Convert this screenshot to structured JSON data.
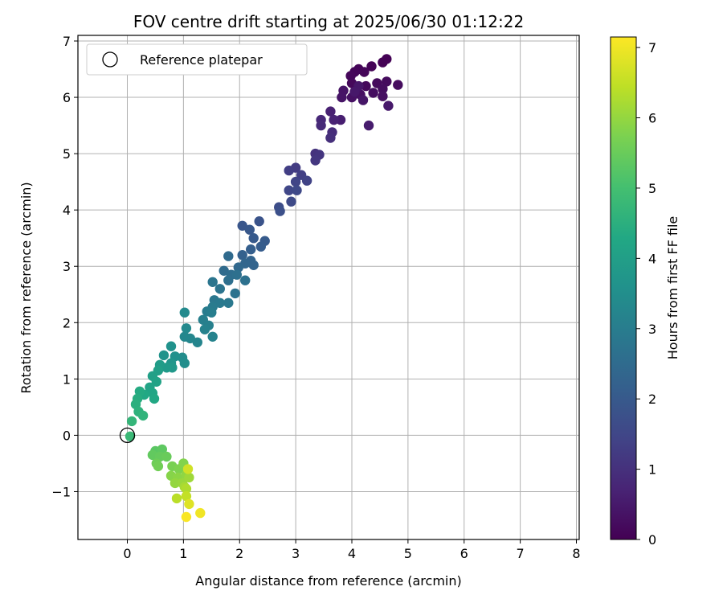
{
  "chart_data": {
    "type": "scatter",
    "title": "FOV centre drift starting at 2025/06/30 01:12:22",
    "xlabel": "Angular distance from reference (arcmin)",
    "ylabel": "Rotation from reference (arcmin)",
    "xlim": [
      -0.88,
      8.05
    ],
    "ylim": [
      -1.85,
      7.1
    ],
    "xticks": [
      0,
      1,
      2,
      3,
      4,
      5,
      6,
      7,
      8
    ],
    "yticks": [
      -1,
      0,
      1,
      2,
      3,
      4,
      5,
      6,
      7
    ],
    "grid": true,
    "legend": {
      "placement": "top-left",
      "label": "Reference platepar"
    },
    "colorbar": {
      "label": "Hours from first FF file",
      "colormap": "viridis",
      "range": [
        0,
        7.15
      ],
      "ticks": [
        0,
        1,
        2,
        3,
        4,
        5,
        6,
        7
      ]
    },
    "reference_point": {
      "x": 0,
      "y": 0
    },
    "points": [
      [
        4.62,
        6.68,
        0.02
      ],
      [
        4.55,
        6.62,
        0.03
      ],
      [
        4.35,
        6.55,
        0.05
      ],
      [
        4.12,
        6.5,
        0.06
      ],
      [
        4.05,
        6.45,
        0.08
      ],
      [
        4.22,
        6.45,
        0.1
      ],
      [
        3.98,
        6.38,
        0.12
      ],
      [
        4.0,
        6.25,
        0.14
      ],
      [
        4.25,
        6.2,
        0.16
      ],
      [
        4.45,
        6.25,
        0.18
      ],
      [
        4.62,
        6.28,
        0.2
      ],
      [
        4.82,
        6.22,
        0.22
      ],
      [
        4.55,
        6.15,
        0.24
      ],
      [
        4.38,
        6.08,
        0.26
      ],
      [
        4.55,
        6.02,
        0.28
      ],
      [
        4.15,
        6.05,
        0.3
      ],
      [
        4.0,
        6.0,
        0.33
      ],
      [
        3.85,
        6.12,
        0.36
      ],
      [
        3.82,
        6.0,
        0.39
      ],
      [
        4.2,
        5.95,
        0.42
      ],
      [
        4.12,
        6.2,
        0.45
      ],
      [
        4.05,
        6.1,
        0.48
      ],
      [
        4.65,
        5.85,
        0.5
      ],
      [
        4.3,
        5.5,
        0.55
      ],
      [
        3.8,
        5.6,
        0.6
      ],
      [
        3.62,
        5.75,
        0.65
      ],
      [
        3.68,
        5.6,
        0.7
      ],
      [
        3.45,
        5.6,
        0.78
      ],
      [
        3.45,
        5.5,
        0.84
      ],
      [
        3.65,
        5.38,
        0.9
      ],
      [
        3.62,
        5.28,
        0.96
      ],
      [
        3.35,
        5.0,
        1.05
      ],
      [
        3.42,
        4.98,
        1.1
      ],
      [
        3.35,
        4.88,
        1.15
      ],
      [
        3.0,
        4.75,
        1.25
      ],
      [
        2.88,
        4.7,
        1.3
      ],
      [
        3.1,
        4.62,
        1.35
      ],
      [
        3.2,
        4.52,
        1.4
      ],
      [
        3.0,
        4.5,
        1.45
      ],
      [
        2.88,
        4.35,
        1.5
      ],
      [
        3.02,
        4.35,
        1.55
      ],
      [
        2.92,
        4.15,
        1.6
      ],
      [
        2.7,
        4.05,
        1.68
      ],
      [
        2.72,
        3.98,
        1.74
      ],
      [
        2.35,
        3.8,
        1.82
      ],
      [
        2.05,
        3.72,
        1.9
      ],
      [
        2.18,
        3.65,
        1.95
      ],
      [
        2.25,
        3.5,
        2.0
      ],
      [
        2.45,
        3.45,
        2.05
      ],
      [
        2.38,
        3.35,
        2.1
      ],
      [
        2.2,
        3.3,
        2.15
      ],
      [
        2.05,
        3.2,
        2.2
      ],
      [
        2.2,
        3.1,
        2.25
      ],
      [
        2.25,
        3.02,
        2.3
      ],
      [
        2.1,
        3.05,
        2.35
      ],
      [
        1.98,
        2.98,
        2.4
      ],
      [
        1.8,
        3.18,
        2.45
      ],
      [
        1.72,
        2.92,
        2.5
      ],
      [
        1.85,
        2.85,
        2.55
      ],
      [
        1.8,
        2.75,
        2.6
      ],
      [
        1.95,
        2.85,
        2.62
      ],
      [
        2.1,
        2.75,
        2.66
      ],
      [
        1.92,
        2.52,
        2.7
      ],
      [
        1.65,
        2.6,
        2.74
      ],
      [
        1.52,
        2.72,
        2.78
      ],
      [
        1.55,
        2.4,
        2.82
      ],
      [
        1.8,
        2.35,
        2.86
      ],
      [
        1.65,
        2.35,
        2.9
      ],
      [
        1.52,
        2.28,
        2.94
      ],
      [
        1.42,
        2.2,
        2.98
      ],
      [
        1.5,
        2.18,
        3.02
      ],
      [
        1.35,
        2.05,
        3.06
      ],
      [
        1.45,
        1.95,
        3.1
      ],
      [
        1.38,
        1.88,
        3.14
      ],
      [
        1.52,
        1.75,
        3.18
      ],
      [
        1.25,
        1.65,
        3.22
      ],
      [
        1.12,
        1.72,
        3.26
      ],
      [
        1.02,
        1.75,
        3.3
      ],
      [
        1.05,
        1.9,
        3.34
      ],
      [
        1.02,
        2.18,
        3.38
      ],
      [
        0.98,
        1.38,
        3.45
      ],
      [
        1.02,
        1.28,
        3.5
      ],
      [
        0.85,
        1.4,
        3.55
      ],
      [
        0.78,
        1.58,
        3.6
      ],
      [
        0.65,
        1.42,
        3.65
      ],
      [
        0.78,
        1.28,
        3.7
      ],
      [
        0.8,
        1.2,
        3.78
      ],
      [
        0.7,
        1.2,
        3.85
      ],
      [
        0.58,
        1.25,
        3.92
      ],
      [
        0.55,
        1.15,
        4.0
      ],
      [
        0.45,
        1.05,
        4.05
      ],
      [
        0.52,
        0.95,
        4.1
      ],
      [
        0.4,
        0.85,
        4.15
      ],
      [
        0.45,
        0.75,
        4.2
      ],
      [
        0.48,
        0.65,
        4.25
      ],
      [
        0.3,
        0.72,
        4.3
      ],
      [
        0.22,
        0.78,
        4.35
      ],
      [
        0.18,
        0.65,
        4.42
      ],
      [
        0.15,
        0.55,
        4.5
      ],
      [
        0.2,
        0.42,
        4.56
      ],
      [
        0.28,
        0.35,
        4.62
      ],
      [
        0.08,
        0.25,
        4.7
      ],
      [
        0.05,
        -0.02,
        4.8
      ],
      [
        0.5,
        -0.28,
        5.3
      ],
      [
        0.62,
        -0.25,
        5.35
      ],
      [
        0.45,
        -0.35,
        5.4
      ],
      [
        0.58,
        -0.38,
        5.45
      ],
      [
        0.7,
        -0.38,
        5.5
      ],
      [
        0.52,
        -0.5,
        5.55
      ],
      [
        0.55,
        -0.55,
        5.6
      ],
      [
        0.8,
        -0.55,
        5.7
      ],
      [
        0.92,
        -0.6,
        5.75
      ],
      [
        1.0,
        -0.5,
        5.8
      ],
      [
        0.78,
        -0.72,
        5.85
      ],
      [
        0.9,
        -0.75,
        5.9
      ],
      [
        1.05,
        -0.7,
        5.95
      ],
      [
        0.85,
        -0.85,
        6.0
      ],
      [
        0.98,
        -0.85,
        6.05
      ],
      [
        1.1,
        -0.75,
        6.1
      ],
      [
        1.02,
        -0.92,
        6.2
      ],
      [
        1.05,
        -0.95,
        6.3
      ],
      [
        0.88,
        -1.12,
        6.4
      ],
      [
        1.05,
        -1.08,
        6.5
      ],
      [
        1.08,
        -0.6,
        6.65
      ],
      [
        1.1,
        -1.22,
        6.8
      ],
      [
        1.3,
        -1.38,
        7.0
      ],
      [
        1.05,
        -1.45,
        7.1
      ]
    ]
  }
}
